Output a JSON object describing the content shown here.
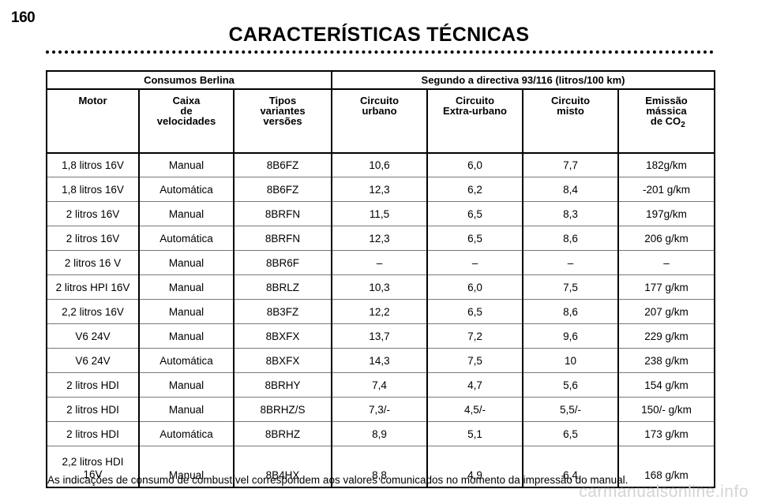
{
  "page_number": "160",
  "title": "CARACTERÍSTICAS TÉCNICAS",
  "table": {
    "group_headers": [
      "Consumos Berlina",
      "Segundo a directiva 93/116 (litros/100 km)"
    ],
    "columns": {
      "motor": [
        "Motor"
      ],
      "caixa": [
        "Caixa",
        "de",
        "velocidades"
      ],
      "tipos": [
        "Tipos",
        "variantes",
        "versões"
      ],
      "urbano": [
        "Circuito",
        "urbano"
      ],
      "extra": [
        "Circuito",
        "Extra-urbano"
      ],
      "misto": [
        "Circuito",
        "misto"
      ],
      "emissao": [
        "Emissão",
        "mássica",
        "de CO",
        "2"
      ]
    },
    "rows": [
      [
        "1,8 litros 16V",
        "Manual",
        "8B6FZ",
        "10,6",
        "6,0",
        "7,7",
        "182g/km"
      ],
      [
        "1,8 litros 16V",
        "Automática",
        "8B6FZ",
        "12,3",
        "6,2",
        "8,4",
        "-201 g/km"
      ],
      [
        "2 litros 16V",
        "Manual",
        "8BRFN",
        "11,5",
        "6,5",
        "8,3",
        "197g/km"
      ],
      [
        "2 litros 16V",
        "Automática",
        "8BRFN",
        "12,3",
        "6,5",
        "8,6",
        "206 g/km"
      ],
      [
        "2 litros 16 V",
        "Manual",
        "8BR6F",
        "–",
        "–",
        "–",
        "–"
      ],
      [
        "2 litros HPI 16V",
        "Manual",
        "8BRLZ",
        "10,3",
        "6,0",
        "7,5",
        "177 g/km"
      ],
      [
        "2,2 litros 16V",
        "Manual",
        "8B3FZ",
        "12,2",
        "6,5",
        "8,6",
        "207 g/km"
      ],
      [
        "V6 24V",
        "Manual",
        "8BXFX",
        "13,7",
        "7,2",
        "9,6",
        "229 g/km"
      ],
      [
        "V6 24V",
        "Automática",
        "8BXFX",
        "14,3",
        "7,5",
        "10",
        "238 g/km"
      ],
      [
        "2 litros HDI",
        "Manual",
        "8BRHY",
        "7,4",
        "4,7",
        "5,6",
        "154 g/km"
      ],
      [
        "2 litros HDI",
        "Manual",
        "8BRHZ/S",
        "7,3/-",
        "4,5/-",
        "5,5/-",
        "150/- g/km"
      ],
      [
        "2 litros HDI",
        "Automática",
        "8BRHZ",
        "8,9",
        "5,1",
        "6,5",
        "173 g/km"
      ]
    ],
    "last_row": {
      "motor": [
        "2,2 litros HDI",
        "16V"
      ],
      "cells": [
        "Manual",
        "8B4HX",
        "8,8",
        "4,9",
        "6,4",
        "168 g/km"
      ]
    }
  },
  "footnote": "As indicações de consumo de combustível correspondem aos valores comunicados no momento da impressão do manual.",
  "watermark": "carmanualsonline.info"
}
